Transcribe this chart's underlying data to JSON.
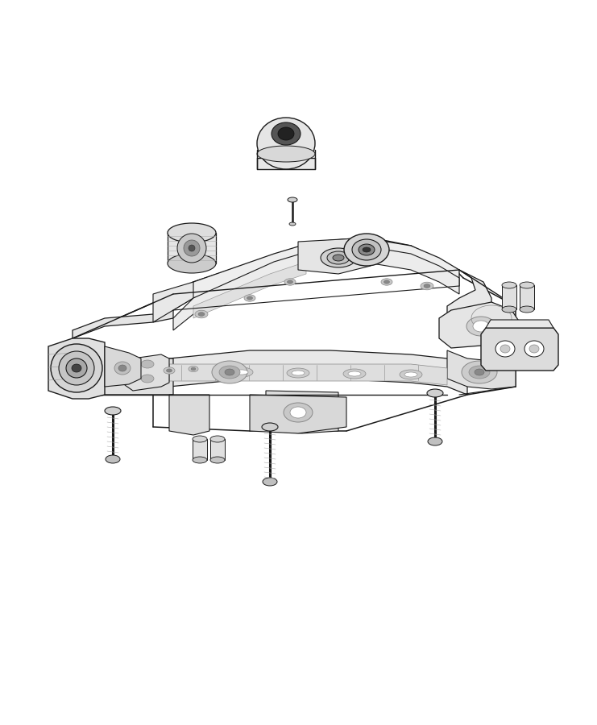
{
  "background_color": "#ffffff",
  "line_color": "#2a2a2a",
  "figure_width": 7.41,
  "figure_height": 9.0,
  "dpi": 100,
  "frame_color": "#1a1a1a",
  "fill_light": "#f5f5f5",
  "fill_mid": "#e8e8e8",
  "fill_dark": "#d0d0d0",
  "fill_darker": "#b8b8b8"
}
